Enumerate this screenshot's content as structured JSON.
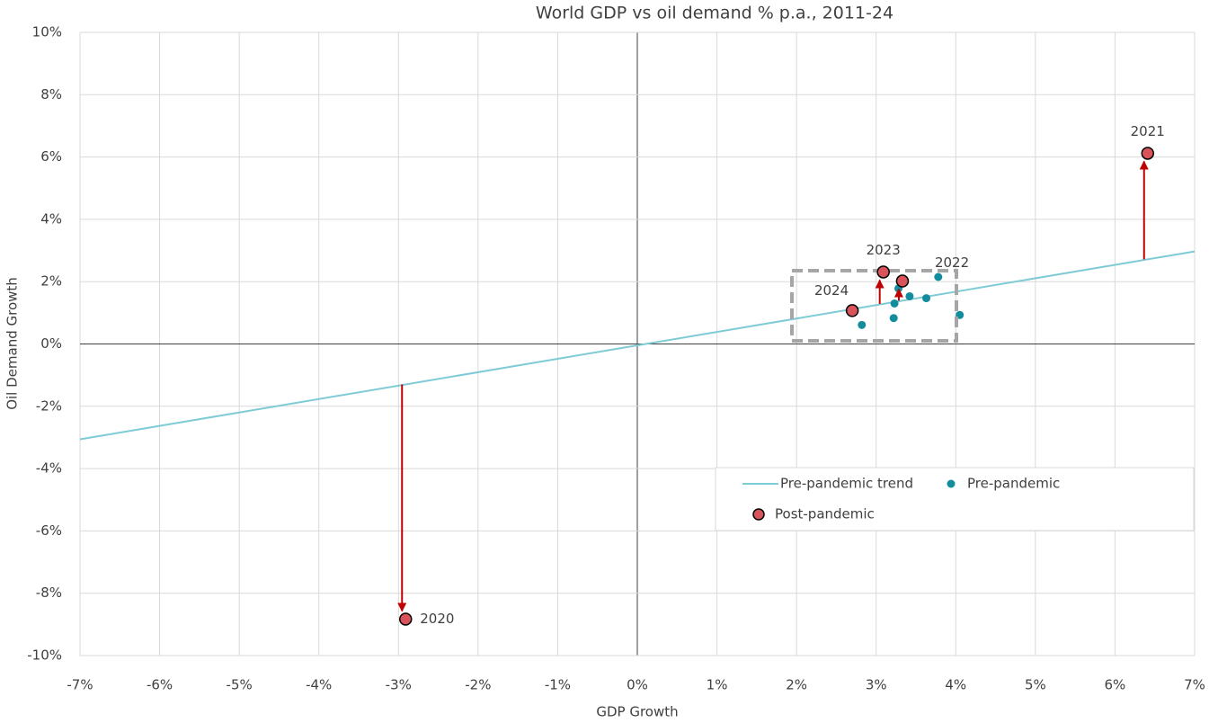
{
  "chart_data": {
    "type": "scatter",
    "title": "World GDP vs oil demand % p.a., 2011-24",
    "x_label": "GDP Growth",
    "y_label": "Oil Demand Growth",
    "xlim": [
      -7,
      7
    ],
    "ylim": [
      -10,
      10
    ],
    "xticks": [
      {
        "value": -7,
        "label": "-7%"
      },
      {
        "value": -6,
        "label": "-6%"
      },
      {
        "value": -5,
        "label": "-5%"
      },
      {
        "value": -4,
        "label": "-4%"
      },
      {
        "value": -3,
        "label": "-3%"
      },
      {
        "value": -2,
        "label": "-2%"
      },
      {
        "value": -1,
        "label": "-1%"
      },
      {
        "value": 0,
        "label": "0%"
      },
      {
        "value": 1,
        "label": "1%"
      },
      {
        "value": 2,
        "label": "2%"
      },
      {
        "value": 3,
        "label": "3%"
      },
      {
        "value": 4,
        "label": "4%"
      },
      {
        "value": 5,
        "label": "5%"
      },
      {
        "value": 6,
        "label": "6%"
      },
      {
        "value": 7,
        "label": "7%"
      }
    ],
    "yticks": [
      {
        "value": -10,
        "label": "-10%"
      },
      {
        "value": -8,
        "label": "-8%"
      },
      {
        "value": -6,
        "label": "-6%"
      },
      {
        "value": -4,
        "label": "-4%"
      },
      {
        "value": -2,
        "label": "-2%"
      },
      {
        "value": 0,
        "label": "0%"
      },
      {
        "value": 2,
        "label": "2%"
      },
      {
        "value": 4,
        "label": "4%"
      },
      {
        "value": 6,
        "label": "6%"
      },
      {
        "value": 8,
        "label": "8%"
      },
      {
        "value": 10,
        "label": "10%"
      }
    ],
    "grid": true,
    "legend": "lower right",
    "series": [
      {
        "name": "Pre-pandemic trend",
        "kind": "line",
        "color": "#7ecbd6",
        "x": [
          -7,
          7
        ],
        "values": [
          -3.06,
          2.97
        ]
      },
      {
        "name": "Pre-pandemic",
        "kind": "dot",
        "color": "#138d9e",
        "x": [
          2.82,
          3.22,
          3.23,
          3.28,
          3.42,
          3.63,
          3.78,
          4.05
        ],
        "values": [
          0.61,
          0.83,
          1.3,
          1.78,
          1.53,
          1.47,
          2.15,
          0.93
        ]
      },
      {
        "name": "Post-pandemic",
        "kind": "marker",
        "color": "#d9545a",
        "x": [
          -2.91,
          6.41,
          3.33,
          3.09,
          2.7
        ],
        "values": [
          -8.83,
          6.12,
          2.02,
          2.31,
          1.07
        ],
        "labels": [
          "2020",
          "2021",
          "2022",
          "2023",
          "2024"
        ],
        "label_positions": [
          "right",
          "above",
          "right",
          "above",
          "left"
        ],
        "arrows": [
          true,
          true,
          true,
          true,
          false
        ],
        "arrow_color": "#c00000"
      }
    ]
  }
}
